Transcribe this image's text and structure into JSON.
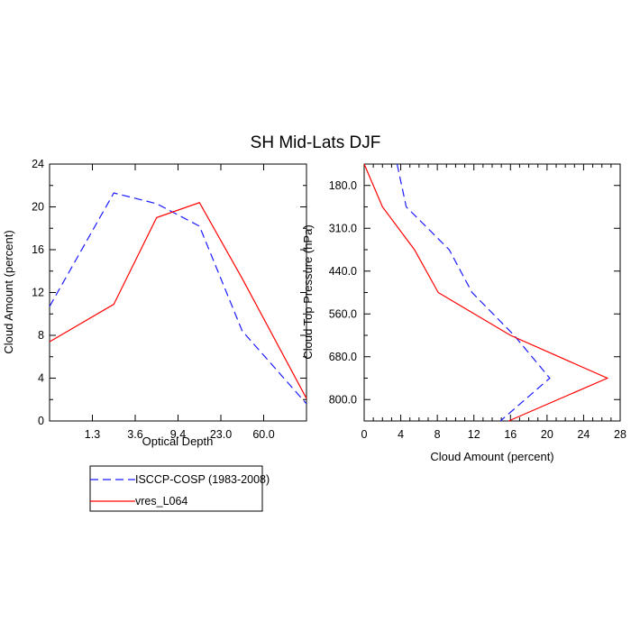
{
  "title": "SH Mid-Lats DJF",
  "colors": {
    "obs": "#1a1aff",
    "model": "#ff0000",
    "axis": "#000000"
  },
  "chart_data": [
    {
      "type": "line",
      "id": "left",
      "xlabel": "Optical Depth",
      "ylabel": "Cloud Amount (percent)",
      "ylim": [
        0,
        24
      ],
      "y_ticks": [
        "0",
        "4",
        "8",
        "12",
        "16",
        "20",
        "24"
      ],
      "x_ticks": [
        "1.3",
        "3.6",
        "9.4",
        "23.0",
        "60.0"
      ],
      "x_positions": [
        0,
        1,
        2,
        3,
        4,
        5,
        6
      ],
      "series": [
        {
          "name": "ISCCP-COSP (1983-2008)",
          "style": "dashed",
          "values": [
            10.7,
            21.3,
            20.3,
            18.2,
            8.4,
            1.6
          ]
        },
        {
          "name": "vres_L064",
          "style": "solid",
          "values": [
            7.4,
            10.9,
            19.0,
            20.4,
            13.3,
            2.1
          ]
        }
      ]
    },
    {
      "type": "line",
      "id": "right",
      "xlabel": "Cloud Amount (percent)",
      "ylabel": "Cloud Top Pressure (hPa)",
      "xlim": [
        0,
        28
      ],
      "x_ticks": [
        "0",
        "4",
        "8",
        "12",
        "16",
        "20",
        "24",
        "28"
      ],
      "y_ticks": [
        "180.0",
        "310.0",
        "440.0",
        "560.0",
        "680.0",
        "800.0"
      ],
      "series": [
        {
          "name": "ISCCP-COSP (1983-2008)",
          "style": "dashed",
          "values": [
            3.6,
            4.6,
            9.3,
            11.8,
            16.4,
            20.3,
            14.9
          ]
        },
        {
          "name": "vres_L064",
          "style": "solid",
          "values": [
            0.0,
            2.0,
            5.5,
            8.1,
            16.0,
            26.6,
            15.8
          ]
        }
      ]
    }
  ],
  "legend": {
    "items": [
      {
        "label": "ISCCP-COSP (1983-2008)",
        "style": "dashed"
      },
      {
        "label": "vres_L064",
        "style": "solid"
      }
    ]
  }
}
